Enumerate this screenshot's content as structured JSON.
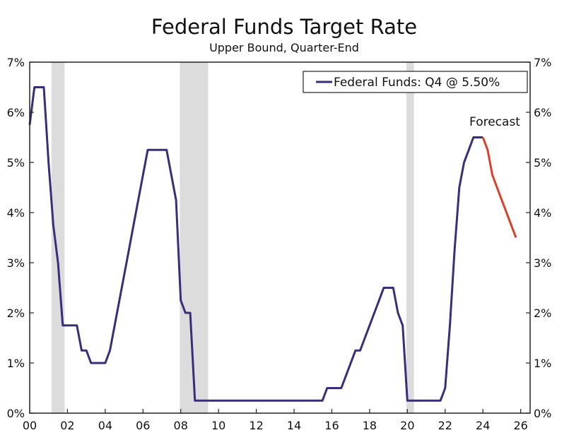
{
  "chart_data": {
    "type": "line",
    "title": "Federal Funds Target Rate",
    "subtitle": "Upper Bound, Quarter-End",
    "xlabel": "",
    "ylabel": "",
    "xlim": [
      2000,
      2026.5
    ],
    "ylim": [
      0,
      7
    ],
    "grid": false,
    "legend_position": "top-right",
    "legend_label": "Federal Funds: Q4 @ 5.50%",
    "annotation": "Forecast",
    "x_ticks": [
      {
        "value": 2000,
        "label": "00"
      },
      {
        "value": 2002,
        "label": "02"
      },
      {
        "value": 2004,
        "label": "04"
      },
      {
        "value": 2006,
        "label": "06"
      },
      {
        "value": 2008,
        "label": "08"
      },
      {
        "value": 2010,
        "label": "10"
      },
      {
        "value": 2012,
        "label": "12"
      },
      {
        "value": 2014,
        "label": "14"
      },
      {
        "value": 2016,
        "label": "16"
      },
      {
        "value": 2018,
        "label": "18"
      },
      {
        "value": 2020,
        "label": "20"
      },
      {
        "value": 2022,
        "label": "22"
      },
      {
        "value": 2024,
        "label": "24"
      },
      {
        "value": 2026,
        "label": "26"
      }
    ],
    "y_ticks": [
      {
        "value": 0,
        "label": "0%"
      },
      {
        "value": 1,
        "label": "1%"
      },
      {
        "value": 2,
        "label": "2%"
      },
      {
        "value": 3,
        "label": "3%"
      },
      {
        "value": 4,
        "label": "4%"
      },
      {
        "value": 5,
        "label": "5%"
      },
      {
        "value": 6,
        "label": "6%"
      },
      {
        "value": 7,
        "label": "7%"
      }
    ],
    "recessions": [
      {
        "start": 2001.15,
        "end": 2001.85
      },
      {
        "start": 2007.95,
        "end": 2009.45
      },
      {
        "start": 2019.95,
        "end": 2020.35
      }
    ],
    "series": [
      {
        "color": "#3b2d7a",
        "points": [
          [
            2000.0,
            5.75
          ],
          [
            2000.25,
            6.5
          ],
          [
            2000.5,
            6.5
          ],
          [
            2000.75,
            6.5
          ],
          [
            2001.0,
            5.0
          ],
          [
            2001.25,
            3.75
          ],
          [
            2001.5,
            3.0
          ],
          [
            2001.75,
            1.75
          ],
          [
            2002.0,
            1.75
          ],
          [
            2002.25,
            1.75
          ],
          [
            2002.5,
            1.75
          ],
          [
            2002.75,
            1.25
          ],
          [
            2003.0,
            1.25
          ],
          [
            2003.25,
            1.0
          ],
          [
            2003.5,
            1.0
          ],
          [
            2003.75,
            1.0
          ],
          [
            2004.0,
            1.0
          ],
          [
            2004.25,
            1.25
          ],
          [
            2004.5,
            1.75
          ],
          [
            2004.75,
            2.25
          ],
          [
            2005.0,
            2.75
          ],
          [
            2005.25,
            3.25
          ],
          [
            2005.5,
            3.75
          ],
          [
            2005.75,
            4.25
          ],
          [
            2006.0,
            4.75
          ],
          [
            2006.25,
            5.25
          ],
          [
            2006.5,
            5.25
          ],
          [
            2006.75,
            5.25
          ],
          [
            2007.0,
            5.25
          ],
          [
            2007.25,
            5.25
          ],
          [
            2007.5,
            4.75
          ],
          [
            2007.75,
            4.25
          ],
          [
            2008.0,
            2.25
          ],
          [
            2008.25,
            2.0
          ],
          [
            2008.5,
            2.0
          ],
          [
            2008.75,
            0.25
          ],
          [
            2009.0,
            0.25
          ],
          [
            2010.0,
            0.25
          ],
          [
            2011.0,
            0.25
          ],
          [
            2012.0,
            0.25
          ],
          [
            2013.0,
            0.25
          ],
          [
            2014.0,
            0.25
          ],
          [
            2015.0,
            0.25
          ],
          [
            2015.5,
            0.25
          ],
          [
            2015.75,
            0.5
          ],
          [
            2016.0,
            0.5
          ],
          [
            2016.25,
            0.5
          ],
          [
            2016.5,
            0.5
          ],
          [
            2016.75,
            0.75
          ],
          [
            2017.0,
            1.0
          ],
          [
            2017.25,
            1.25
          ],
          [
            2017.5,
            1.25
          ],
          [
            2017.75,
            1.5
          ],
          [
            2018.0,
            1.75
          ],
          [
            2018.25,
            2.0
          ],
          [
            2018.5,
            2.25
          ],
          [
            2018.75,
            2.5
          ],
          [
            2019.0,
            2.5
          ],
          [
            2019.25,
            2.5
          ],
          [
            2019.5,
            2.0
          ],
          [
            2019.75,
            1.75
          ],
          [
            2020.0,
            0.25
          ],
          [
            2020.25,
            0.25
          ],
          [
            2020.5,
            0.25
          ],
          [
            2021.0,
            0.25
          ],
          [
            2021.5,
            0.25
          ],
          [
            2021.75,
            0.25
          ],
          [
            2022.0,
            0.5
          ],
          [
            2022.25,
            1.75
          ],
          [
            2022.5,
            3.25
          ],
          [
            2022.75,
            4.5
          ],
          [
            2023.0,
            5.0
          ],
          [
            2023.25,
            5.25
          ],
          [
            2023.5,
            5.5
          ],
          [
            2023.75,
            5.5
          ],
          [
            2024.0,
            5.5
          ]
        ]
      },
      {
        "color": "#d9412b",
        "points": [
          [
            2024.0,
            5.5
          ],
          [
            2024.25,
            5.25
          ],
          [
            2024.5,
            4.75
          ],
          [
            2024.75,
            4.5
          ],
          [
            2025.0,
            4.25
          ],
          [
            2025.25,
            4.0
          ],
          [
            2025.5,
            3.75
          ],
          [
            2025.75,
            3.5
          ]
        ]
      }
    ]
  }
}
